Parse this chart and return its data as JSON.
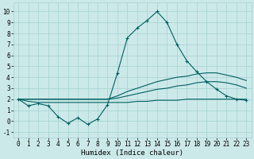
{
  "xlabel": "Humidex (Indice chaleur)",
  "background_color": "#cce9e9",
  "grid_color": "#aad4d4",
  "line_color": "#005f5f",
  "x_values": [
    0,
    1,
    2,
    3,
    4,
    5,
    6,
    7,
    8,
    9,
    10,
    11,
    12,
    13,
    14,
    15,
    16,
    17,
    18,
    19,
    20,
    21,
    22,
    23
  ],
  "series": {
    "main": [
      2.0,
      1.4,
      1.6,
      1.4,
      0.4,
      -0.2,
      0.3,
      -0.3,
      0.2,
      1.5,
      4.4,
      7.6,
      8.5,
      9.2,
      10.0,
      9.0,
      7.0,
      5.5,
      4.5,
      3.6,
      2.9,
      2.3,
      2.0,
      1.9
    ],
    "line_top": [
      2.0,
      2.0,
      2.0,
      2.0,
      2.0,
      2.0,
      2.0,
      2.0,
      2.0,
      2.0,
      2.3,
      2.7,
      3.0,
      3.3,
      3.6,
      3.8,
      4.0,
      4.1,
      4.3,
      4.4,
      4.4,
      4.2,
      4.0,
      3.7
    ],
    "line_mid": [
      2.0,
      2.0,
      2.0,
      2.0,
      2.0,
      2.0,
      2.0,
      2.0,
      2.0,
      2.0,
      2.1,
      2.3,
      2.5,
      2.7,
      2.9,
      3.0,
      3.2,
      3.3,
      3.5,
      3.6,
      3.6,
      3.5,
      3.3,
      3.0
    ],
    "line_bot": [
      2.0,
      1.8,
      1.7,
      1.7,
      1.7,
      1.7,
      1.7,
      1.7,
      1.7,
      1.7,
      1.7,
      1.7,
      1.8,
      1.8,
      1.9,
      1.9,
      1.9,
      2.0,
      2.0,
      2.0,
      2.0,
      2.0,
      2.0,
      2.0
    ]
  },
  "ylim": [
    -1.5,
    10.8
  ],
  "xlim": [
    -0.5,
    23.5
  ],
  "yticks": [
    -1,
    0,
    1,
    2,
    3,
    4,
    5,
    6,
    7,
    8,
    9,
    10
  ],
  "xticks": [
    0,
    1,
    2,
    3,
    4,
    5,
    6,
    7,
    8,
    9,
    10,
    11,
    12,
    13,
    14,
    15,
    16,
    17,
    18,
    19,
    20,
    21,
    22,
    23
  ],
  "tick_fontsize": 5.5,
  "xlabel_fontsize": 6.5
}
